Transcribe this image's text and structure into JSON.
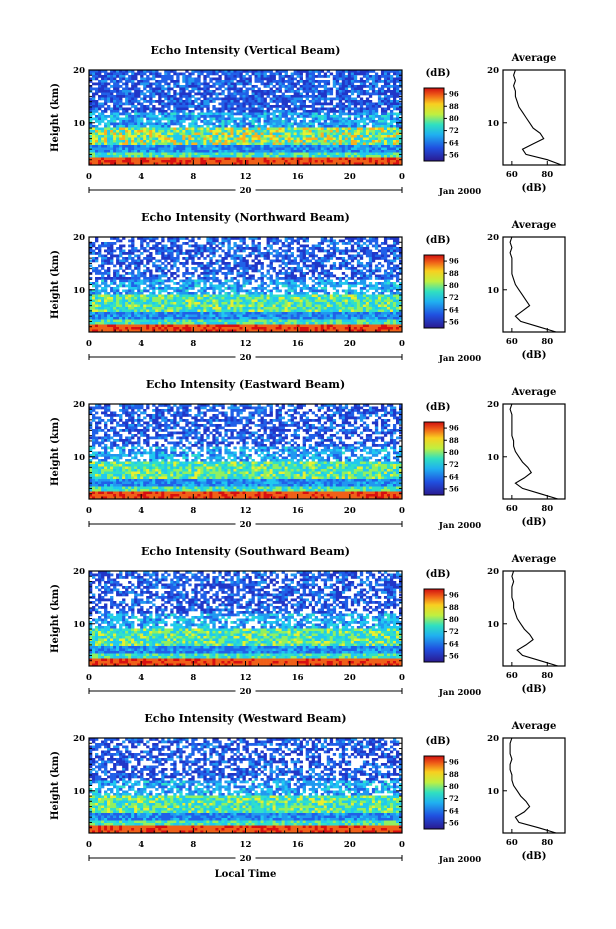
{
  "figure": {
    "colorbar_unit": "(dB)",
    "colorbar_ticks": [
      "56",
      "64",
      "72",
      "80",
      "88",
      "96"
    ],
    "date_label": "Jan 2000",
    "day_label": "20",
    "xlabel_bottom": "Local Time",
    "avg_title": "Average",
    "avg_xlabel": "(dB)",
    "colors": {
      "blue": "#2020b0",
      "cyan": "#20c8e8",
      "yellow": "#f0e020",
      "red": "#e02020"
    }
  },
  "chart_data": [
    {
      "type": "heatmap",
      "title": "Echo Intensity (Vertical Beam)",
      "ylabel": "Height (km)",
      "xlabel": "",
      "x_ticks": [
        "0",
        "4",
        "8",
        "12",
        "16",
        "20",
        "0"
      ],
      "y_ticks": [
        "20",
        "10"
      ],
      "xlim": [
        0,
        24
      ],
      "ylim": [
        2,
        20
      ],
      "avg_profile": {
        "type": "line",
        "title": "Average",
        "xlabel": "(dB)",
        "x_ticks": [
          "60",
          "80"
        ],
        "y_ticks": [
          "20",
          "10"
        ],
        "xlim": [
          55,
          90
        ],
        "ylim": [
          2,
          20
        ],
        "height_km": [
          2,
          3,
          4,
          5,
          6,
          7,
          8,
          9,
          10,
          11,
          12,
          13,
          14,
          15,
          16,
          17,
          18,
          19,
          20
        ],
        "db": [
          88,
          80,
          68,
          66,
          72,
          78,
          76,
          72,
          70,
          68,
          66,
          64,
          63,
          62,
          62,
          61,
          62,
          61,
          62
        ]
      }
    },
    {
      "type": "heatmap",
      "title": "Echo Intensity (Northward Beam)",
      "ylabel": "Height (km)",
      "xlabel": "",
      "x_ticks": [
        "0",
        "4",
        "8",
        "12",
        "16",
        "20",
        "0"
      ],
      "y_ticks": [
        "20",
        "10"
      ],
      "xlim": [
        0,
        24
      ],
      "ylim": [
        2,
        20
      ],
      "avg_profile": {
        "type": "line",
        "title": "Average",
        "xlabel": "(dB)",
        "x_ticks": [
          "60",
          "80"
        ],
        "y_ticks": [
          "20",
          "10"
        ],
        "xlim": [
          55,
          90
        ],
        "ylim": [
          2,
          20
        ],
        "height_km": [
          2,
          3,
          4,
          5,
          6,
          7,
          8,
          9,
          10,
          11,
          12,
          13,
          14,
          15,
          16,
          17,
          18,
          19,
          20
        ],
        "db": [
          85,
          75,
          65,
          62,
          66,
          70,
          68,
          66,
          64,
          62,
          61,
          60,
          60,
          60,
          60,
          59,
          60,
          59,
          60
        ]
      }
    },
    {
      "type": "heatmap",
      "title": "Echo Intensity (Eastward Beam)",
      "ylabel": "Height (km)",
      "xlabel": "",
      "x_ticks": [
        "0",
        "4",
        "8",
        "12",
        "16",
        "20",
        "0"
      ],
      "y_ticks": [
        "20",
        "10"
      ],
      "xlim": [
        0,
        24
      ],
      "ylim": [
        2,
        20
      ],
      "avg_profile": {
        "type": "line",
        "title": "Average",
        "xlabel": "(dB)",
        "x_ticks": [
          "60",
          "80"
        ],
        "y_ticks": [
          "20",
          "10"
        ],
        "xlim": [
          55,
          90
        ],
        "ylim": [
          2,
          20
        ],
        "height_km": [
          2,
          3,
          4,
          5,
          6,
          7,
          8,
          9,
          10,
          11,
          12,
          13,
          14,
          15,
          16,
          17,
          18,
          19,
          20
        ],
        "db": [
          86,
          76,
          66,
          62,
          67,
          71,
          69,
          66,
          64,
          62,
          61,
          61,
          60,
          60,
          60,
          60,
          60,
          59,
          60
        ]
      }
    },
    {
      "type": "heatmap",
      "title": "Echo Intensity (Southward Beam)",
      "ylabel": "Height (km)",
      "xlabel": "",
      "x_ticks": [
        "0",
        "4",
        "8",
        "12",
        "16",
        "20",
        "0"
      ],
      "y_ticks": [
        "20",
        "10"
      ],
      "xlim": [
        0,
        24
      ],
      "ylim": [
        2,
        20
      ],
      "avg_profile": {
        "type": "line",
        "title": "Average",
        "xlabel": "(dB)",
        "x_ticks": [
          "60",
          "80"
        ],
        "y_ticks": [
          "20",
          "10"
        ],
        "xlim": [
          55,
          90
        ],
        "ylim": [
          2,
          20
        ],
        "height_km": [
          2,
          3,
          4,
          5,
          6,
          7,
          8,
          9,
          10,
          11,
          12,
          13,
          14,
          15,
          16,
          17,
          18,
          19,
          20
        ],
        "db": [
          86,
          76,
          66,
          63,
          68,
          72,
          70,
          67,
          65,
          63,
          62,
          61,
          61,
          60,
          60,
          60,
          61,
          60,
          61
        ]
      }
    },
    {
      "type": "heatmap",
      "title": "Echo Intensity (Westward Beam)",
      "ylabel": "Height (km)",
      "xlabel": "Local Time",
      "x_ticks": [
        "0",
        "4",
        "8",
        "12",
        "16",
        "20",
        "0"
      ],
      "y_ticks": [
        "20",
        "10"
      ],
      "xlim": [
        0,
        24
      ],
      "ylim": [
        2,
        20
      ],
      "avg_profile": {
        "type": "line",
        "title": "Average",
        "xlabel": "(dB)",
        "x_ticks": [
          "60",
          "80"
        ],
        "y_ticks": [
          "20",
          "10"
        ],
        "xlim": [
          55,
          90
        ],
        "ylim": [
          2,
          20
        ],
        "height_km": [
          2,
          3,
          4,
          5,
          6,
          7,
          8,
          9,
          10,
          11,
          12,
          13,
          14,
          15,
          16,
          17,
          18,
          19,
          20
        ],
        "db": [
          85,
          75,
          64,
          62,
          67,
          70,
          68,
          65,
          63,
          61,
          60,
          60,
          59,
          59,
          60,
          59,
          59,
          59,
          60
        ]
      }
    }
  ]
}
